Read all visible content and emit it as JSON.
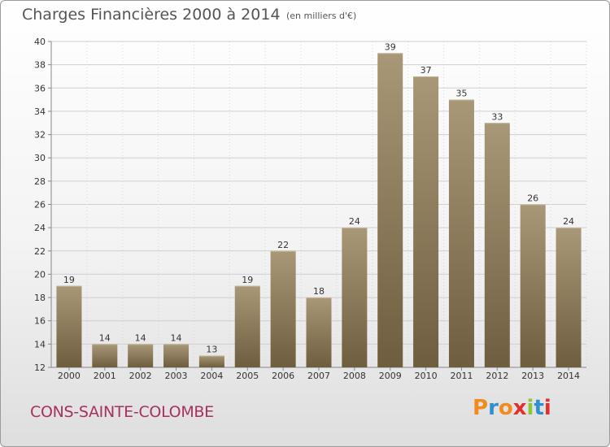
{
  "header": {
    "title": "Charges Financières 2000 à 2014",
    "subtitle": "(en milliers d'€)"
  },
  "footer": {
    "commune": "CONS-SAINTE-COLOMBE",
    "logo": "Proxiti"
  },
  "colors": {
    "bar_top": "#a89878",
    "bar_bottom": "#6e5d3e",
    "title_text": "#555555",
    "commune_text": "#a83060",
    "logo_letters": [
      "#f08c1e",
      "#2f8fd0",
      "#f08c1e",
      "#e03030",
      "#8cc63e",
      "#2f8fd0",
      "#e03030"
    ]
  },
  "chart_data": {
    "type": "bar",
    "title": "Charges Financières 2000 à 2014",
    "subtitle": "(en milliers d'€)",
    "categories": [
      "2000",
      "2001",
      "2002",
      "2003",
      "2004",
      "2005",
      "2006",
      "2007",
      "2008",
      "2009",
      "2010",
      "2011",
      "2012",
      "2013",
      "2014"
    ],
    "values": [
      19,
      14,
      14,
      14,
      13,
      19,
      22,
      18,
      24,
      39,
      37,
      35,
      33,
      26,
      24
    ],
    "ylim": [
      12,
      40
    ],
    "yticks": [
      12,
      14,
      16,
      18,
      20,
      22,
      24,
      26,
      28,
      30,
      32,
      34,
      36,
      38,
      40
    ],
    "grid": true,
    "legend": false
  }
}
